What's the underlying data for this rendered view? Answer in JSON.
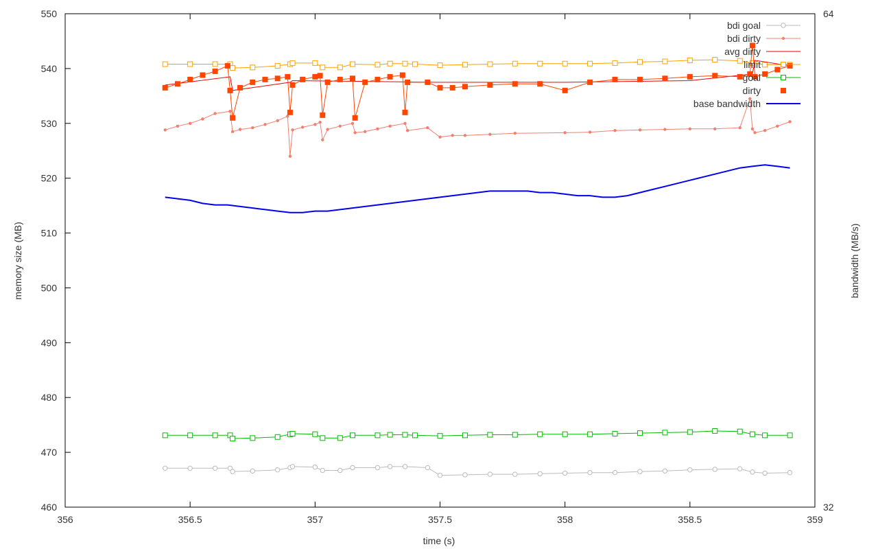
{
  "chart_data": {
    "type": "line",
    "title": "",
    "xlabel": "time (s)",
    "ylabel": "memory size (MB)",
    "y2label": "bandwidth (MB/s)",
    "xlim": [
      356,
      359
    ],
    "ylim": [
      460,
      550
    ],
    "y2lim": [
      32,
      64
    ],
    "x_ticks": [
      "356",
      "356.5",
      "357",
      "357.5",
      "358",
      "358.5",
      "359"
    ],
    "y_ticks": [
      "460",
      "470",
      "480",
      "490",
      "500",
      "510",
      "520",
      "530",
      "540",
      "550"
    ],
    "y2_ticks": [
      "32",
      "64"
    ],
    "grid": false,
    "legend_position": "top-right",
    "legend": [
      {
        "label": "bdi goal",
        "color": "#bbbbbb",
        "style": "line-open-circle"
      },
      {
        "label": "bdi dirty",
        "color": "#f08070",
        "style": "line-dot"
      },
      {
        "label": "avg dirty",
        "color": "#ee0000",
        "style": "line"
      },
      {
        "label": "limit",
        "color": "#ffa000",
        "style": "line-open-square"
      },
      {
        "label": "goal",
        "color": "#00bb00",
        "style": "line-open-square"
      },
      {
        "label": "dirty",
        "color": "#ff4500",
        "style": "filled-square"
      },
      {
        "label": "base bandwidth",
        "color": "#0000ee",
        "style": "thick-line"
      }
    ],
    "series": [
      {
        "key": "limit",
        "color": "#ffa000",
        "marker": "open-square",
        "x": [
          356.4,
          356.5,
          356.6,
          356.66,
          356.67,
          356.75,
          356.85,
          356.9,
          356.91,
          357.0,
          357.03,
          357.1,
          357.15,
          357.25,
          357.3,
          357.36,
          357.4,
          357.5,
          357.6,
          357.7,
          357.8,
          357.9,
          358.0,
          358.1,
          358.2,
          358.3,
          358.4,
          358.5,
          358.6,
          358.7,
          358.75,
          358.8,
          358.9
        ],
        "y": [
          540.8,
          540.8,
          540.8,
          540.8,
          540.1,
          540.2,
          540.5,
          540.8,
          541.0,
          541.0,
          540.2,
          540.2,
          540.8,
          540.7,
          540.9,
          540.9,
          540.8,
          540.6,
          540.7,
          540.8,
          540.9,
          540.9,
          540.9,
          540.9,
          541.0,
          541.2,
          541.3,
          541.5,
          541.6,
          541.4,
          541.0,
          540.7,
          540.7
        ]
      },
      {
        "key": "goal",
        "color": "#00bb00",
        "marker": "open-square",
        "x": [
          356.4,
          356.5,
          356.6,
          356.66,
          356.67,
          356.75,
          356.85,
          356.9,
          356.91,
          357.0,
          357.03,
          357.1,
          357.15,
          357.25,
          357.3,
          357.36,
          357.4,
          357.5,
          357.6,
          357.7,
          357.8,
          357.9,
          358.0,
          358.1,
          358.2,
          358.3,
          358.4,
          358.5,
          358.6,
          358.7,
          358.75,
          358.8,
          358.9
        ],
        "y": [
          473.1,
          473.1,
          473.1,
          473.1,
          472.5,
          472.6,
          472.8,
          473.3,
          473.4,
          473.3,
          472.6,
          472.6,
          473.1,
          473.1,
          473.2,
          473.2,
          473.1,
          473.0,
          473.1,
          473.2,
          473.2,
          473.3,
          473.3,
          473.3,
          473.4,
          473.5,
          473.6,
          473.7,
          473.9,
          473.8,
          473.3,
          473.1,
          473.1
        ]
      },
      {
        "key": "bdi goal",
        "color": "#bbbbbb",
        "marker": "open-circle",
        "x": [
          356.4,
          356.5,
          356.6,
          356.66,
          356.67,
          356.75,
          356.85,
          356.9,
          356.91,
          357.0,
          357.03,
          357.1,
          357.15,
          357.25,
          357.3,
          357.36,
          357.45,
          357.5,
          357.6,
          357.7,
          357.8,
          357.9,
          358.0,
          358.1,
          358.2,
          358.3,
          358.4,
          358.5,
          358.6,
          358.7,
          358.75,
          358.8,
          358.9
        ],
        "y": [
          467.1,
          467.1,
          467.1,
          467.1,
          466.5,
          466.6,
          466.8,
          467.2,
          467.4,
          467.3,
          466.7,
          466.7,
          467.2,
          467.2,
          467.4,
          467.4,
          467.2,
          465.8,
          465.9,
          466.0,
          466.0,
          466.1,
          466.2,
          466.3,
          466.3,
          466.5,
          466.6,
          466.8,
          466.9,
          467.0,
          466.4,
          466.2,
          466.3
        ]
      },
      {
        "key": "bdi dirty",
        "color": "#f08070",
        "marker": "dot",
        "x": [
          356.4,
          356.45,
          356.5,
          356.55,
          356.6,
          356.66,
          356.67,
          356.7,
          356.75,
          356.8,
          356.85,
          356.89,
          356.9,
          356.91,
          356.95,
          357.0,
          357.02,
          357.03,
          357.05,
          357.1,
          357.15,
          357.16,
          357.2,
          357.25,
          357.3,
          357.36,
          357.37,
          357.45,
          357.5,
          357.55,
          357.6,
          357.7,
          357.8,
          358.0,
          358.1,
          358.2,
          358.3,
          358.4,
          358.5,
          358.6,
          358.7,
          358.74,
          358.75,
          358.76,
          358.8,
          358.85,
          358.9
        ],
        "y": [
          528.8,
          529.5,
          530.0,
          530.8,
          531.8,
          532.2,
          528.5,
          528.9,
          529.2,
          529.8,
          530.5,
          531.3,
          524.0,
          528.8,
          529.3,
          529.8,
          530.2,
          527.0,
          528.9,
          529.5,
          530.0,
          528.3,
          528.5,
          529.0,
          529.5,
          530.0,
          528.7,
          529.2,
          527.5,
          527.8,
          527.8,
          528.0,
          528.2,
          528.3,
          528.4,
          528.7,
          528.8,
          528.9,
          529.0,
          529.0,
          529.2,
          534.5,
          529.0,
          528.3,
          528.7,
          529.5,
          530.3
        ]
      },
      {
        "key": "avg dirty",
        "color": "#ee0000",
        "marker": "none",
        "x": [
          356.4,
          356.66,
          356.67,
          356.9,
          356.91,
          357.5,
          358.0,
          358.5,
          358.75,
          358.76,
          358.9
        ],
        "y": [
          537.0,
          538.5,
          536.0,
          537.5,
          537.8,
          537.5,
          537.5,
          537.8,
          539.0,
          541.5,
          540.5
        ]
      },
      {
        "key": "dirty",
        "color": "#ff4500",
        "marker": "filled-square",
        "x": [
          356.4,
          356.45,
          356.5,
          356.55,
          356.6,
          356.65,
          356.66,
          356.67,
          356.7,
          356.75,
          356.8,
          356.85,
          356.89,
          356.9,
          356.91,
          356.95,
          357.0,
          357.02,
          357.03,
          357.05,
          357.1,
          357.15,
          357.16,
          357.2,
          357.25,
          357.3,
          357.35,
          357.36,
          357.37,
          357.45,
          357.5,
          357.55,
          357.6,
          357.7,
          357.8,
          357.9,
          358.0,
          358.1,
          358.2,
          358.3,
          358.4,
          358.5,
          358.6,
          358.7,
          358.74,
          358.75,
          358.76,
          358.8,
          358.85,
          358.9
        ],
        "y": [
          536.5,
          537.2,
          538.0,
          538.8,
          539.5,
          540.5,
          536.0,
          531.0,
          536.5,
          537.5,
          538.0,
          538.2,
          538.5,
          532.0,
          537.0,
          538.0,
          538.5,
          538.7,
          531.5,
          537.5,
          538.0,
          538.2,
          531.0,
          537.5,
          538.0,
          538.5,
          538.8,
          532.0,
          537.5,
          537.5,
          536.5,
          536.5,
          536.7,
          537.0,
          537.2,
          537.2,
          536.0,
          537.5,
          538.0,
          538.0,
          538.2,
          538.5,
          538.7,
          538.5,
          539.0,
          544.2,
          538.5,
          539.0,
          539.8,
          540.5
        ]
      },
      {
        "key": "base bandwidth",
        "color": "#0000ee",
        "marker": "none",
        "axis": "y2",
        "x": [
          356.4,
          356.45,
          356.5,
          356.55,
          356.6,
          356.65,
          356.7,
          356.75,
          356.8,
          356.85,
          356.9,
          356.95,
          357.0,
          357.05,
          357.1,
          357.15,
          357.2,
          357.25,
          357.3,
          357.35,
          357.4,
          357.45,
          357.5,
          357.55,
          357.6,
          357.65,
          357.7,
          357.75,
          357.8,
          357.85,
          357.9,
          357.95,
          358.0,
          358.05,
          358.1,
          358.15,
          358.2,
          358.25,
          358.3,
          358.35,
          358.4,
          358.45,
          358.5,
          358.55,
          358.6,
          358.65,
          358.7,
          358.75,
          358.8,
          358.85,
          358.9
        ],
        "y": [
          52.1,
          52.0,
          51.9,
          51.7,
          51.6,
          51.6,
          51.5,
          51.4,
          51.3,
          51.2,
          51.1,
          51.1,
          51.2,
          51.2,
          51.3,
          51.4,
          51.5,
          51.6,
          51.7,
          51.8,
          51.9,
          52.0,
          52.1,
          52.2,
          52.3,
          52.4,
          52.5,
          52.5,
          52.5,
          52.5,
          52.4,
          52.4,
          52.3,
          52.2,
          52.2,
          52.1,
          52.1,
          52.2,
          52.4,
          52.6,
          52.8,
          53.0,
          53.2,
          53.4,
          53.6,
          53.8,
          54.0,
          54.1,
          54.2,
          54.1,
          54.0
        ]
      }
    ]
  }
}
